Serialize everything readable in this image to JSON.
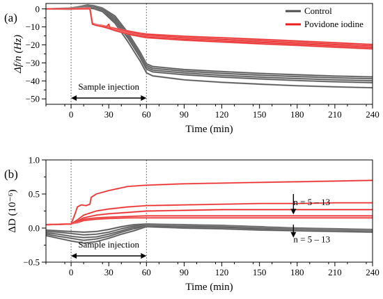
{
  "chart_data": [
    {
      "panel_label": "(a)",
      "type": "line",
      "xlabel": "Time (min)",
      "ylabel": "Δf/n (Hz)",
      "xlim": [
        -20,
        240
      ],
      "ylim": [
        -53,
        3
      ],
      "x_ticks": [
        0,
        30,
        60,
        90,
        120,
        150,
        180,
        210,
        240
      ],
      "y_ticks": [
        0,
        -10,
        -20,
        -30,
        -40,
        -50
      ],
      "vlines": [
        0,
        60
      ],
      "annotation": "Sample injection",
      "annotation_arrow_x": [
        0,
        60
      ],
      "legend": [
        {
          "name": "Control",
          "color": "#4d4d4d"
        },
        {
          "name": "Povidone iodine",
          "color": "#ea1c1c"
        }
      ],
      "series": [
        {
          "group": "Control",
          "x": [
            -20,
            0,
            8,
            13,
            18,
            25,
            35,
            45,
            55,
            60,
            65,
            90,
            120,
            150,
            180,
            210,
            240
          ],
          "values": [
            0,
            0.5,
            1.5,
            2.2,
            1.8,
            0.5,
            -4,
            -13,
            -24,
            -30.5,
            -32,
            -33.7,
            -34.8,
            -35.8,
            -36.6,
            -37.3,
            -37.8
          ]
        },
        {
          "group": "Control",
          "x": [
            -20,
            0,
            8,
            13,
            18,
            25,
            35,
            45,
            55,
            60,
            65,
            90,
            120,
            150,
            180,
            210,
            240
          ],
          "values": [
            0,
            0.3,
            1.2,
            1.8,
            1.4,
            0.1,
            -5,
            -14,
            -25,
            -31.5,
            -33,
            -34.6,
            -35.8,
            -36.8,
            -37.6,
            -38.3,
            -38.8
          ]
        },
        {
          "group": "Control",
          "x": [
            -20,
            0,
            8,
            13,
            18,
            25,
            35,
            45,
            55,
            60,
            65,
            90,
            120,
            150,
            180,
            210,
            240
          ],
          "values": [
            0,
            0.1,
            0.8,
            1.3,
            0.9,
            -0.5,
            -6,
            -15,
            -26,
            -32.5,
            -34,
            -35.6,
            -36.9,
            -37.9,
            -38.7,
            -39.4,
            -39.9
          ]
        },
        {
          "group": "Control",
          "x": [
            -20,
            0,
            8,
            13,
            18,
            25,
            35,
            45,
            55,
            60,
            65,
            90,
            120,
            150,
            180,
            210,
            240
          ],
          "values": [
            0,
            0,
            0.5,
            0.9,
            0.5,
            -1,
            -7,
            -16,
            -27,
            -33.5,
            -35,
            -36.6,
            -37.9,
            -38.9,
            -39.8,
            -40.5,
            -41
          ]
        },
        {
          "group": "Control",
          "x": [
            -20,
            0,
            8,
            13,
            18,
            25,
            35,
            45,
            55,
            60,
            65,
            90,
            120,
            150,
            180,
            210,
            240
          ],
          "values": [
            0,
            -0.2,
            0.2,
            0.5,
            0.1,
            -1.5,
            -8,
            -18,
            -29,
            -35.5,
            -37.2,
            -39.4,
            -40.8,
            -41.8,
            -42.7,
            -43.3,
            -43.8
          ]
        },
        {
          "group": "Povidone iodine",
          "x": [
            -20,
            0,
            10,
            15,
            17,
            20,
            25,
            30,
            35,
            45,
            55,
            60,
            90,
            120,
            150,
            180,
            210,
            240
          ],
          "values": [
            0,
            0,
            0.4,
            0.4,
            -8,
            -8.7,
            -9.2,
            -10,
            -10.8,
            -12.2,
            -13.5,
            -14,
            -15.2,
            -16,
            -16.9,
            -17.8,
            -18.8,
            -19.8
          ]
        },
        {
          "group": "Povidone iodine",
          "x": [
            -20,
            0,
            10,
            15,
            17,
            20,
            25,
            30,
            35,
            45,
            55,
            60,
            90,
            120,
            150,
            180,
            210,
            240
          ],
          "values": [
            0,
            0,
            0.3,
            0.3,
            -8,
            -8.7,
            -9.3,
            -10.3,
            -11.2,
            -12.8,
            -14.1,
            -14.6,
            -15.9,
            -16.8,
            -17.7,
            -18.6,
            -19.6,
            -20.6
          ]
        },
        {
          "group": "Povidone iodine",
          "x": [
            -20,
            0,
            10,
            15,
            17,
            20,
            25,
            30,
            35,
            45,
            55,
            60,
            90,
            120,
            150,
            180,
            210,
            240
          ],
          "values": [
            0,
            0,
            0.2,
            0.2,
            -8.2,
            -8.9,
            -9.5,
            -10.6,
            -11.6,
            -13.3,
            -14.6,
            -15.2,
            -16.5,
            -17.4,
            -18.3,
            -19.2,
            -20.2,
            -21.2
          ]
        },
        {
          "group": "Povidone iodine",
          "x": [
            -20,
            0,
            10,
            15,
            17,
            20,
            25,
            28,
            30,
            31,
            35,
            45,
            55,
            60,
            90,
            120,
            150,
            180,
            210,
            240
          ],
          "values": [
            0,
            0,
            0.1,
            0.1,
            -8.3,
            -9,
            -9.6,
            -10,
            -8.5,
            -10.6,
            -11.8,
            -13.6,
            -14.9,
            -15.5,
            -16.8,
            -17.8,
            -18.7,
            -19.6,
            -20.6,
            -21.5
          ]
        },
        {
          "group": "Povidone iodine",
          "x": [
            -20,
            0,
            10,
            15,
            17,
            20,
            25,
            30,
            35,
            45,
            55,
            60,
            90,
            120,
            150,
            180,
            210,
            240
          ],
          "values": [
            0,
            0,
            0,
            0,
            -8.5,
            -9.2,
            -9.9,
            -10.9,
            -12.1,
            -14,
            -15.4,
            -16,
            -17.4,
            -18.4,
            -19.4,
            -20.3,
            -21.3,
            -22.2
          ]
        }
      ]
    },
    {
      "panel_label": "(b)",
      "type": "line",
      "xlabel": "Time (min)",
      "ylabel": "ΔD (10⁻⁶)",
      "xlim": [
        -20,
        240
      ],
      "ylim": [
        -0.5,
        1.0
      ],
      "x_ticks": [
        0,
        30,
        60,
        90,
        120,
        150,
        180,
        210,
        240
      ],
      "y_ticks": [
        -0.5,
        0.0,
        0.5,
        1.0
      ],
      "y_tick_labels": [
        "−0.5",
        "0.0",
        "0.5",
        "1.0"
      ],
      "vlines": [
        0,
        60
      ],
      "annotation": "Sample injection",
      "annotation_arrow_x": [
        0,
        60
      ],
      "n_annotations": [
        {
          "text": "n = 5 – 13",
          "arrow_x": 177,
          "arrow_y": [
            0.5,
            0.2
          ],
          "label_y": 0.38
        },
        {
          "text": "n = 5 – 13",
          "arrow_x": 177,
          "arrow_y": [
            0.05,
            -0.14
          ],
          "label_y": -0.17
        }
      ],
      "series": [
        {
          "group": "Control",
          "x": [
            -20,
            -10,
            0,
            10,
            20,
            30,
            40,
            50,
            60,
            90,
            120,
            150,
            180,
            210,
            240
          ],
          "values": [
            -0.03,
            -0.04,
            -0.05,
            -0.06,
            -0.05,
            -0.02,
            0.02,
            0.05,
            0.06,
            0.05,
            0.04,
            0.02,
            0.0,
            -0.01,
            -0.02
          ]
        },
        {
          "group": "Control",
          "x": [
            -20,
            -10,
            0,
            10,
            20,
            30,
            40,
            50,
            60,
            90,
            120,
            150,
            180,
            210,
            240
          ],
          "values": [
            -0.05,
            -0.06,
            -0.08,
            -0.1,
            -0.09,
            -0.06,
            -0.01,
            0.03,
            0.05,
            0.04,
            0.03,
            0.01,
            -0.01,
            -0.02,
            -0.03
          ]
        },
        {
          "group": "Control",
          "x": [
            -20,
            -10,
            0,
            10,
            20,
            30,
            40,
            50,
            60,
            90,
            120,
            150,
            180,
            210,
            240
          ],
          "values": [
            -0.07,
            -0.09,
            -0.12,
            -0.14,
            -0.13,
            -0.09,
            -0.04,
            0.01,
            0.04,
            0.03,
            0.02,
            0.0,
            -0.02,
            -0.03,
            -0.04
          ]
        },
        {
          "group": "Control",
          "x": [
            -20,
            -10,
            0,
            10,
            20,
            30,
            40,
            50,
            60,
            90,
            120,
            150,
            180,
            210,
            240
          ],
          "values": [
            -0.09,
            -0.12,
            -0.15,
            -0.18,
            -0.16,
            -0.12,
            -0.06,
            -0.01,
            0.03,
            0.02,
            0.01,
            -0.01,
            -0.03,
            -0.04,
            -0.05
          ]
        },
        {
          "group": "Control",
          "x": [
            -20,
            -10,
            0,
            10,
            20,
            30,
            40,
            50,
            60,
            90,
            120,
            150,
            180,
            210,
            240
          ],
          "values": [
            -0.11,
            -0.15,
            -0.19,
            -0.22,
            -0.2,
            -0.15,
            -0.09,
            -0.04,
            0.02,
            0.0,
            -0.01,
            -0.03,
            -0.04,
            -0.05,
            -0.06
          ]
        },
        {
          "group": "Povidone iodine",
          "x": [
            -20,
            0,
            5,
            10,
            15,
            20,
            30,
            45,
            60,
            90,
            120,
            150,
            180,
            210,
            240
          ],
          "values": [
            0.05,
            0.06,
            0.08,
            0.11,
            0.12,
            0.13,
            0.14,
            0.15,
            0.15,
            0.15,
            0.15,
            0.15,
            0.15,
            0.15,
            0.15
          ]
        },
        {
          "group": "Povidone iodine",
          "x": [
            -20,
            0,
            5,
            10,
            15,
            20,
            30,
            45,
            60,
            90,
            120,
            150,
            180,
            210,
            240
          ],
          "values": [
            0.05,
            0.06,
            0.09,
            0.13,
            0.14,
            0.15,
            0.16,
            0.17,
            0.18,
            0.18,
            0.18,
            0.18,
            0.18,
            0.18,
            0.18
          ]
        },
        {
          "group": "Povidone iodine",
          "x": [
            -20,
            0,
            5,
            10,
            15,
            20,
            30,
            45,
            60,
            90,
            120,
            150,
            180,
            210,
            240
          ],
          "values": [
            0.05,
            0.06,
            0.1,
            0.15,
            0.17,
            0.19,
            0.21,
            0.23,
            0.25,
            0.26,
            0.27,
            0.27,
            0.27,
            0.27,
            0.27
          ]
        },
        {
          "group": "Povidone iodine",
          "x": [
            -20,
            0,
            5,
            10,
            15,
            20,
            30,
            45,
            60,
            90,
            120,
            150,
            180,
            210,
            240
          ],
          "values": [
            0.05,
            0.06,
            0.12,
            0.19,
            0.22,
            0.25,
            0.28,
            0.31,
            0.33,
            0.34,
            0.35,
            0.36,
            0.36,
            0.37,
            0.37
          ]
        },
        {
          "group": "Povidone iodine",
          "x": [
            -20,
            0,
            3,
            5,
            8,
            12,
            15,
            16,
            20,
            30,
            45,
            60,
            90,
            120,
            150,
            180,
            210,
            240
          ],
          "values": [
            0.05,
            0.06,
            0.2,
            0.31,
            0.34,
            0.33,
            0.35,
            0.45,
            0.5,
            0.55,
            0.61,
            0.63,
            0.65,
            0.66,
            0.67,
            0.68,
            0.69,
            0.7
          ]
        }
      ]
    }
  ]
}
